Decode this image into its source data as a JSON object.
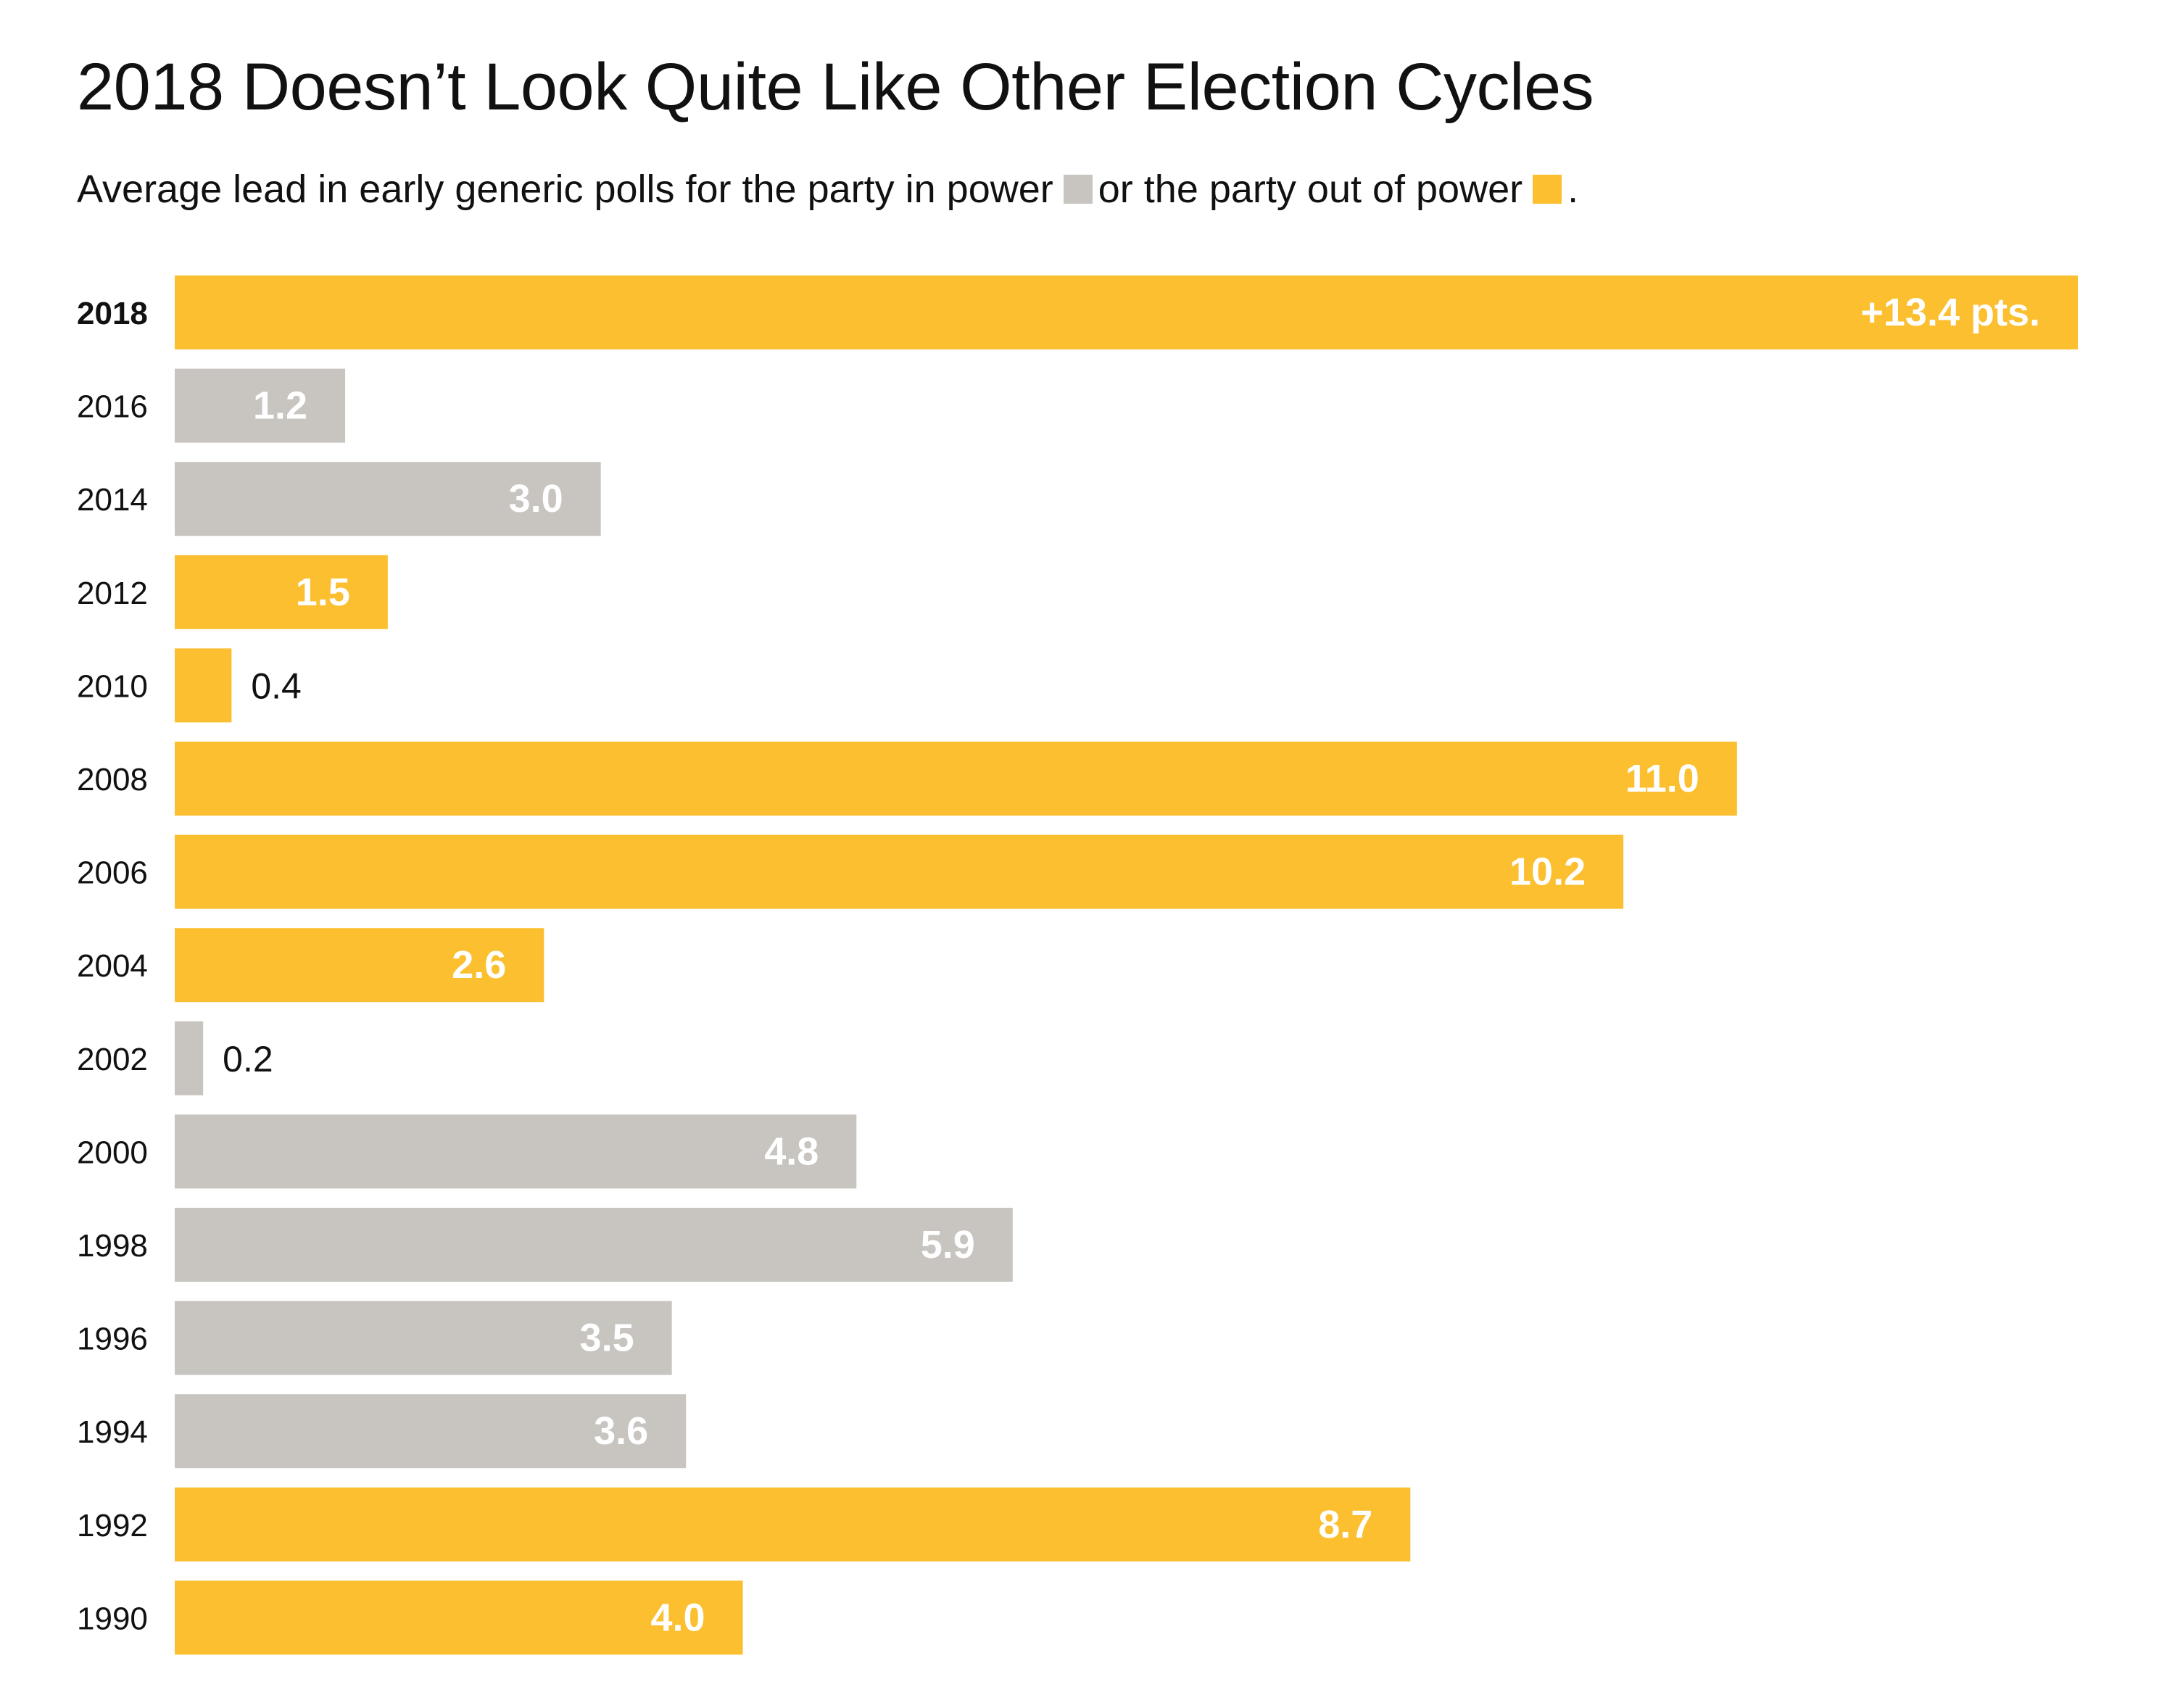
{
  "chart_data": {
    "type": "bar",
    "orientation": "horizontal",
    "title": "2018 Doesn’t Look Quite Like Other Election Cycles",
    "subtitle": {
      "part1": "Average lead in early generic polls for the party in power",
      "part2": "or the party out of power",
      "part3": "."
    },
    "colors": {
      "in_power": "#c8c5c0",
      "out_of_power": "#fbbf2f"
    },
    "categories": [
      "2018",
      "2016",
      "2014",
      "2012",
      "2010",
      "2008",
      "2006",
      "2004",
      "2002",
      "2000",
      "1998",
      "1996",
      "1994",
      "1992",
      "1990"
    ],
    "values": [
      13.4,
      1.2,
      3.0,
      1.5,
      0.4,
      11.0,
      10.2,
      2.6,
      0.2,
      4.8,
      5.9,
      3.5,
      3.6,
      8.7,
      4.0
    ],
    "labels": [
      "+13.4 pts.",
      "1.2",
      "3.0",
      "1.5",
      "0.4",
      "11.0",
      "10.2",
      "2.6",
      "0.2",
      "4.8",
      "5.9",
      "3.5",
      "3.6",
      "8.7",
      "4.0"
    ],
    "party": [
      "out",
      "in",
      "in",
      "out",
      "out",
      "out",
      "out",
      "out",
      "in",
      "in",
      "in",
      "in",
      "in",
      "out",
      "out"
    ],
    "highlight": "2018",
    "xlim": [
      0,
      13.4
    ],
    "grid": false
  }
}
